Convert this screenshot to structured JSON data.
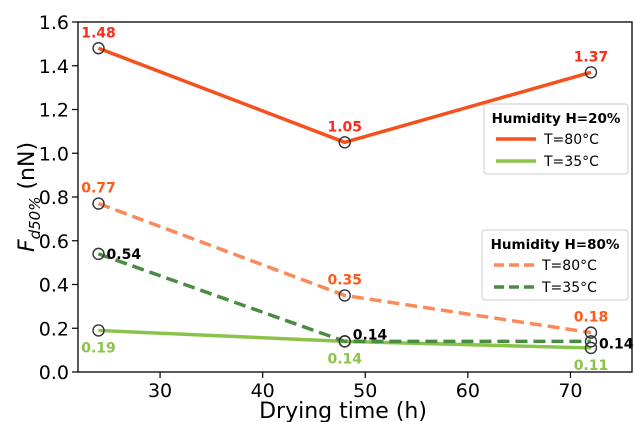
{
  "chart_data": {
    "type": "line",
    "xlabel": "Drying time (h)",
    "ylabel": "F",
    "ylabel_sub": "d50%",
    "ylabel_unit": "(nN)",
    "xlim": [
      22,
      76
    ],
    "ylim": [
      0.0,
      1.6
    ],
    "xticks": [
      30,
      40,
      50,
      60,
      70
    ],
    "yticks": [
      0.0,
      0.2,
      0.4,
      0.6,
      0.8,
      1.0,
      1.2,
      1.4,
      1.6
    ],
    "ytick_labels": [
      "0.0",
      "0.2",
      "0.4",
      "0.6",
      "0.8",
      "1.0",
      "1.2",
      "1.4",
      "1.6"
    ],
    "grid": false,
    "x": [
      24,
      48,
      72
    ],
    "legends": [
      {
        "title": "Humidity H=20%",
        "placement": "right-middle-upper",
        "entries": [
          0,
          1
        ]
      },
      {
        "title": "Humidity H=80%",
        "placement": "right-middle-lower",
        "entries": [
          2,
          3
        ]
      }
    ],
    "series": [
      {
        "name": "T=80°C",
        "humidity": "Humidity H=20%",
        "values": [
          1.48,
          1.05,
          1.37
        ],
        "labels": [
          "1.48",
          "1.05",
          "1.37"
        ],
        "color": "#f4511e",
        "label_color": "#ff2a1a",
        "dashed": false
      },
      {
        "name": "T=35°C",
        "humidity": "Humidity H=20%",
        "values": [
          0.19,
          0.14,
          0.11
        ],
        "labels": [
          "0.19",
          "0.14",
          "0.11"
        ],
        "color": "#8bc34a",
        "label_color": "#8bc34a",
        "dashed": false
      },
      {
        "name": "T=80°C",
        "humidity": "Humidity H=80%",
        "values": [
          0.77,
          0.35,
          0.18
        ],
        "labels": [
          "0.77",
          "0.35",
          "0.18"
        ],
        "color": "#fa8a5a",
        "label_color": "#ff5a1a",
        "dashed": true
      },
      {
        "name": "T=35°C",
        "humidity": "Humidity H=80%",
        "values": [
          0.54,
          0.14,
          0.14
        ],
        "labels": [
          "0.54",
          "0.14",
          "0.14"
        ],
        "color": "#4a8c42",
        "label_color": "#000000",
        "dashed": true
      }
    ]
  }
}
